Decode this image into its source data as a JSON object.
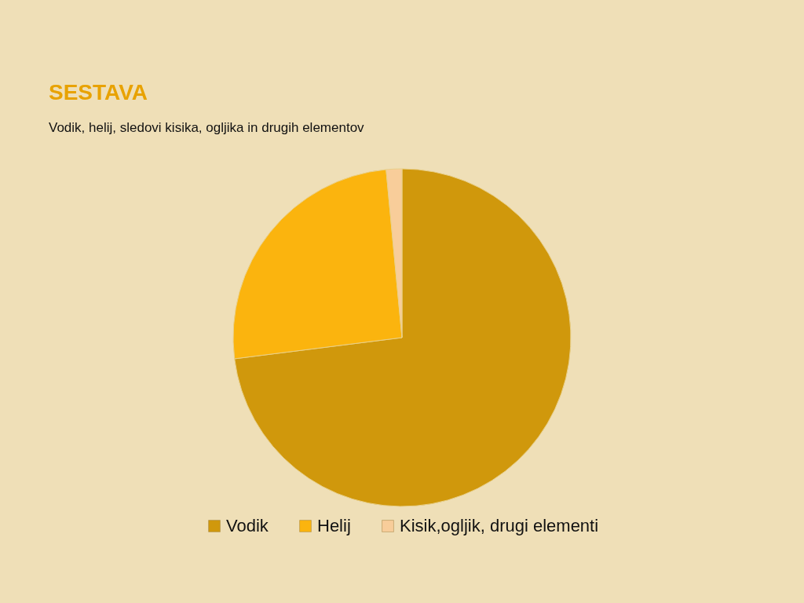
{
  "chart_data": {
    "type": "pie",
    "title": "SESTAVA",
    "subtitle": "Vodik, helij, sledovi kisika, ogljika in drugih elementov",
    "categories": [
      "Vodik",
      "Helij",
      "Kisik,ogljik, drugi elementi"
    ],
    "values": [
      73,
      25.5,
      1.5
    ],
    "colors": [
      "#d0980c",
      "#fbb40e",
      "#f8cd9a"
    ],
    "legend": "bottom"
  }
}
